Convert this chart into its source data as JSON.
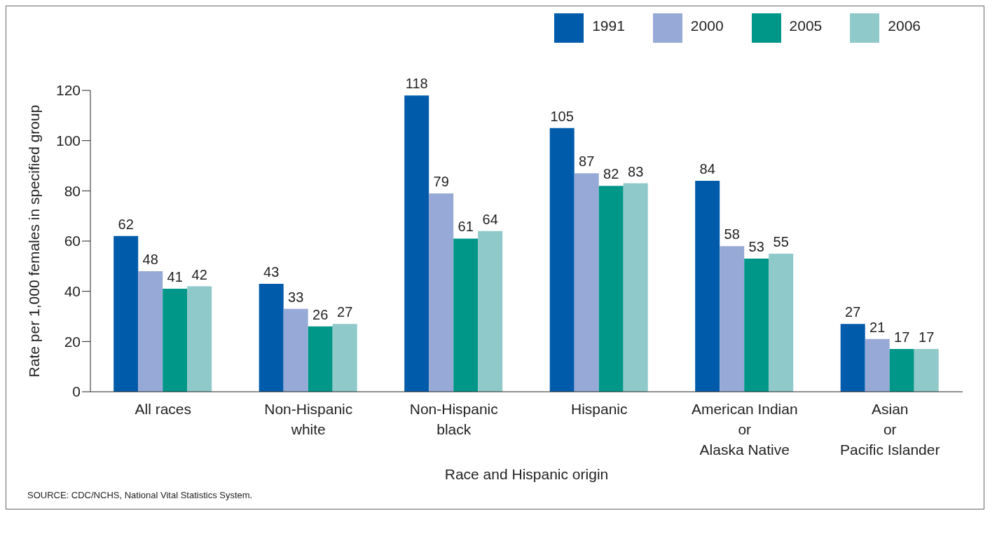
{
  "chart_data": {
    "type": "bar",
    "xlabel": "Race and Hispanic origin",
    "ylabel": "Rate per 1,000 females  in specified group",
    "categories": [
      "All races",
      "Non-Hispanic\nwhite",
      "Non-Hispanic\nblack",
      "Hispanic",
      "American Indian\nor\nAlaska Native",
      "Asian\nor\nPacific Islander"
    ],
    "series": [
      {
        "name": "1991",
        "color": "#005bab",
        "values": [
          62,
          43,
          118,
          105,
          84,
          27
        ]
      },
      {
        "name": "2000",
        "color": "#97a9d6",
        "values": [
          48,
          33,
          79,
          87,
          58,
          21
        ]
      },
      {
        "name": "2005",
        "color": "#009688",
        "values": [
          41,
          26,
          61,
          82,
          53,
          17
        ]
      },
      {
        "name": "2006",
        "color": "#8fc9c9",
        "values": [
          42,
          27,
          64,
          83,
          55,
          17
        ]
      }
    ],
    "ylim": [
      0,
      120
    ],
    "yticks": [
      0,
      20,
      40,
      60,
      80,
      100,
      120
    ],
    "grid": false,
    "legend": "top right",
    "data_labels": true,
    "annotations": [
      "SOURCE: CDC/NCHS, National Vital Statistics System."
    ]
  }
}
